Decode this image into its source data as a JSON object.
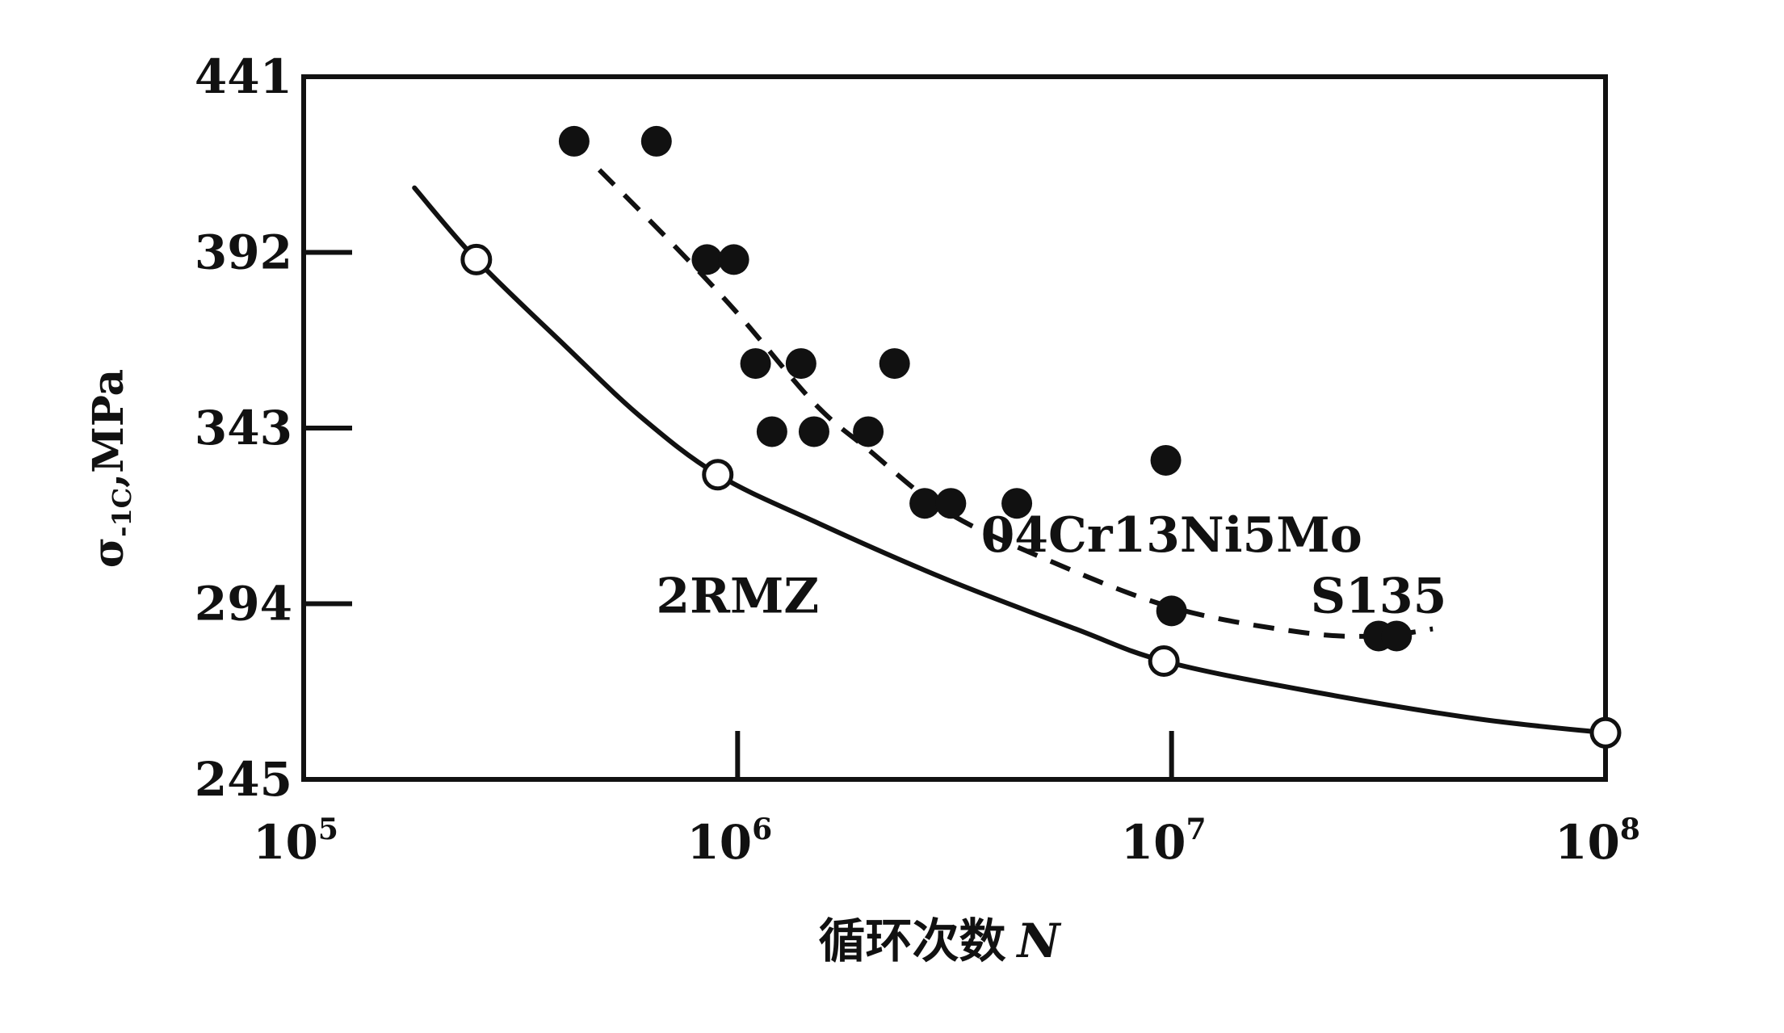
{
  "chart_data": {
    "type": "scatter",
    "title": "",
    "xlabel": "循环次数",
    "xlabel_var": "N",
    "ylabel": "σ",
    "ylabel_sub": "-1C",
    "ylabel_unit": ",MPa",
    "x_scale": "log",
    "xlim": [
      100000,
      100000000
    ],
    "ylim": [
      245,
      441
    ],
    "x_ticks": [
      {
        "value": 100000,
        "base": "10",
        "exp": "5"
      },
      {
        "value": 1000000,
        "base": "10",
        "exp": "6"
      },
      {
        "value": 10000000,
        "base": "10",
        "exp": "7"
      },
      {
        "value": 100000000,
        "base": "10",
        "exp": "8"
      }
    ],
    "y_ticks": [
      {
        "value": 441,
        "label": "441"
      },
      {
        "value": 392,
        "label": "392"
      },
      {
        "value": 343,
        "label": "343"
      },
      {
        "value": 294,
        "label": "294"
      },
      {
        "value": 245,
        "label": "245"
      }
    ],
    "grid": false,
    "series": [
      {
        "name": "2RMZ",
        "marker": "open-circle",
        "line": "solid",
        "points": [
          {
            "x": 250000,
            "y": 390
          },
          {
            "x": 900000,
            "y": 330
          },
          {
            "x": 9600000,
            "y": 278
          },
          {
            "x": 100000000,
            "y": 258
          }
        ],
        "curve": [
          {
            "x": 180000,
            "y": 410
          },
          {
            "x": 250000,
            "y": 390
          },
          {
            "x": 400000,
            "y": 366
          },
          {
            "x": 600000,
            "y": 346
          },
          {
            "x": 900000,
            "y": 330
          },
          {
            "x": 1500000,
            "y": 317
          },
          {
            "x": 3000000,
            "y": 301
          },
          {
            "x": 6000000,
            "y": 287
          },
          {
            "x": 9600000,
            "y": 278
          },
          {
            "x": 20000000,
            "y": 270
          },
          {
            "x": 50000000,
            "y": 262
          },
          {
            "x": 100000000,
            "y": 258
          }
        ]
      },
      {
        "name": "04Cr13Ni5Mo\nS135",
        "marker": "filled-circle",
        "line": "dashed",
        "points": [
          {
            "x": 420000,
            "y": 423
          },
          {
            "x": 650000,
            "y": 423
          },
          {
            "x": 850000,
            "y": 390
          },
          {
            "x": 980000,
            "y": 390
          },
          {
            "x": 1100000,
            "y": 361
          },
          {
            "x": 1400000,
            "y": 361
          },
          {
            "x": 1200000,
            "y": 342
          },
          {
            "x": 1500000,
            "y": 342
          },
          {
            "x": 2000000,
            "y": 342
          },
          {
            "x": 2300000,
            "y": 361
          },
          {
            "x": 2700000,
            "y": 322
          },
          {
            "x": 3100000,
            "y": 322
          },
          {
            "x": 4400000,
            "y": 322
          },
          {
            "x": 9700000,
            "y": 334
          },
          {
            "x": 10000000,
            "y": 292
          },
          {
            "x": 30000000,
            "y": 285
          },
          {
            "x": 33000000,
            "y": 285
          }
        ],
        "curve": [
          {
            "x": 480000,
            "y": 415
          },
          {
            "x": 700000,
            "y": 395
          },
          {
            "x": 1000000,
            "y": 375
          },
          {
            "x": 1500000,
            "y": 350
          },
          {
            "x": 2000000,
            "y": 337
          },
          {
            "x": 3000000,
            "y": 320
          },
          {
            "x": 5000000,
            "y": 307
          },
          {
            "x": 10000000,
            "y": 293
          },
          {
            "x": 20000000,
            "y": 286
          },
          {
            "x": 30000000,
            "y": 285
          },
          {
            "x": 40000000,
            "y": 287
          }
        ]
      }
    ],
    "annotations": [
      {
        "text": "2RMZ",
        "x": 1000000,
        "y": 296
      },
      {
        "text": "04Cr13Ni5Mo",
        "x": 10000000,
        "y": 313
      },
      {
        "text": "S135",
        "x": 30000000,
        "y": 296
      }
    ]
  }
}
